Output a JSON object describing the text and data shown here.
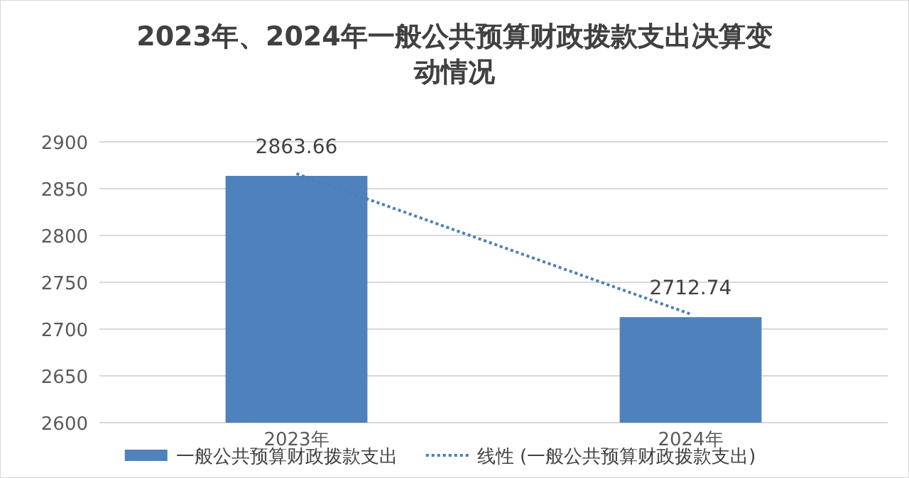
{
  "chart_data": {
    "type": "bar",
    "title": "2023年、2024年一般公共预算财政拨款支出决算变动情况",
    "categories": [
      "2023年",
      "2024年"
    ],
    "series": [
      {
        "name": "一般公共预算财政拨款支出",
        "color": "#4f81bd",
        "values": [
          2863.66,
          2712.74
        ],
        "value_labels": [
          "2863.66",
          "2712.74"
        ]
      },
      {
        "name": "线性 (一般公共预算财政拨款支出)",
        "type": "line",
        "line_style": "dotted",
        "color": "#4a7ebb",
        "values": [
          2866,
          2716
        ]
      }
    ],
    "ylim": [
      2600,
      2900
    ],
    "yticks": [
      2600,
      2650,
      2700,
      2750,
      2800,
      2850,
      2900
    ],
    "grid": "y",
    "legend": "bottom"
  }
}
